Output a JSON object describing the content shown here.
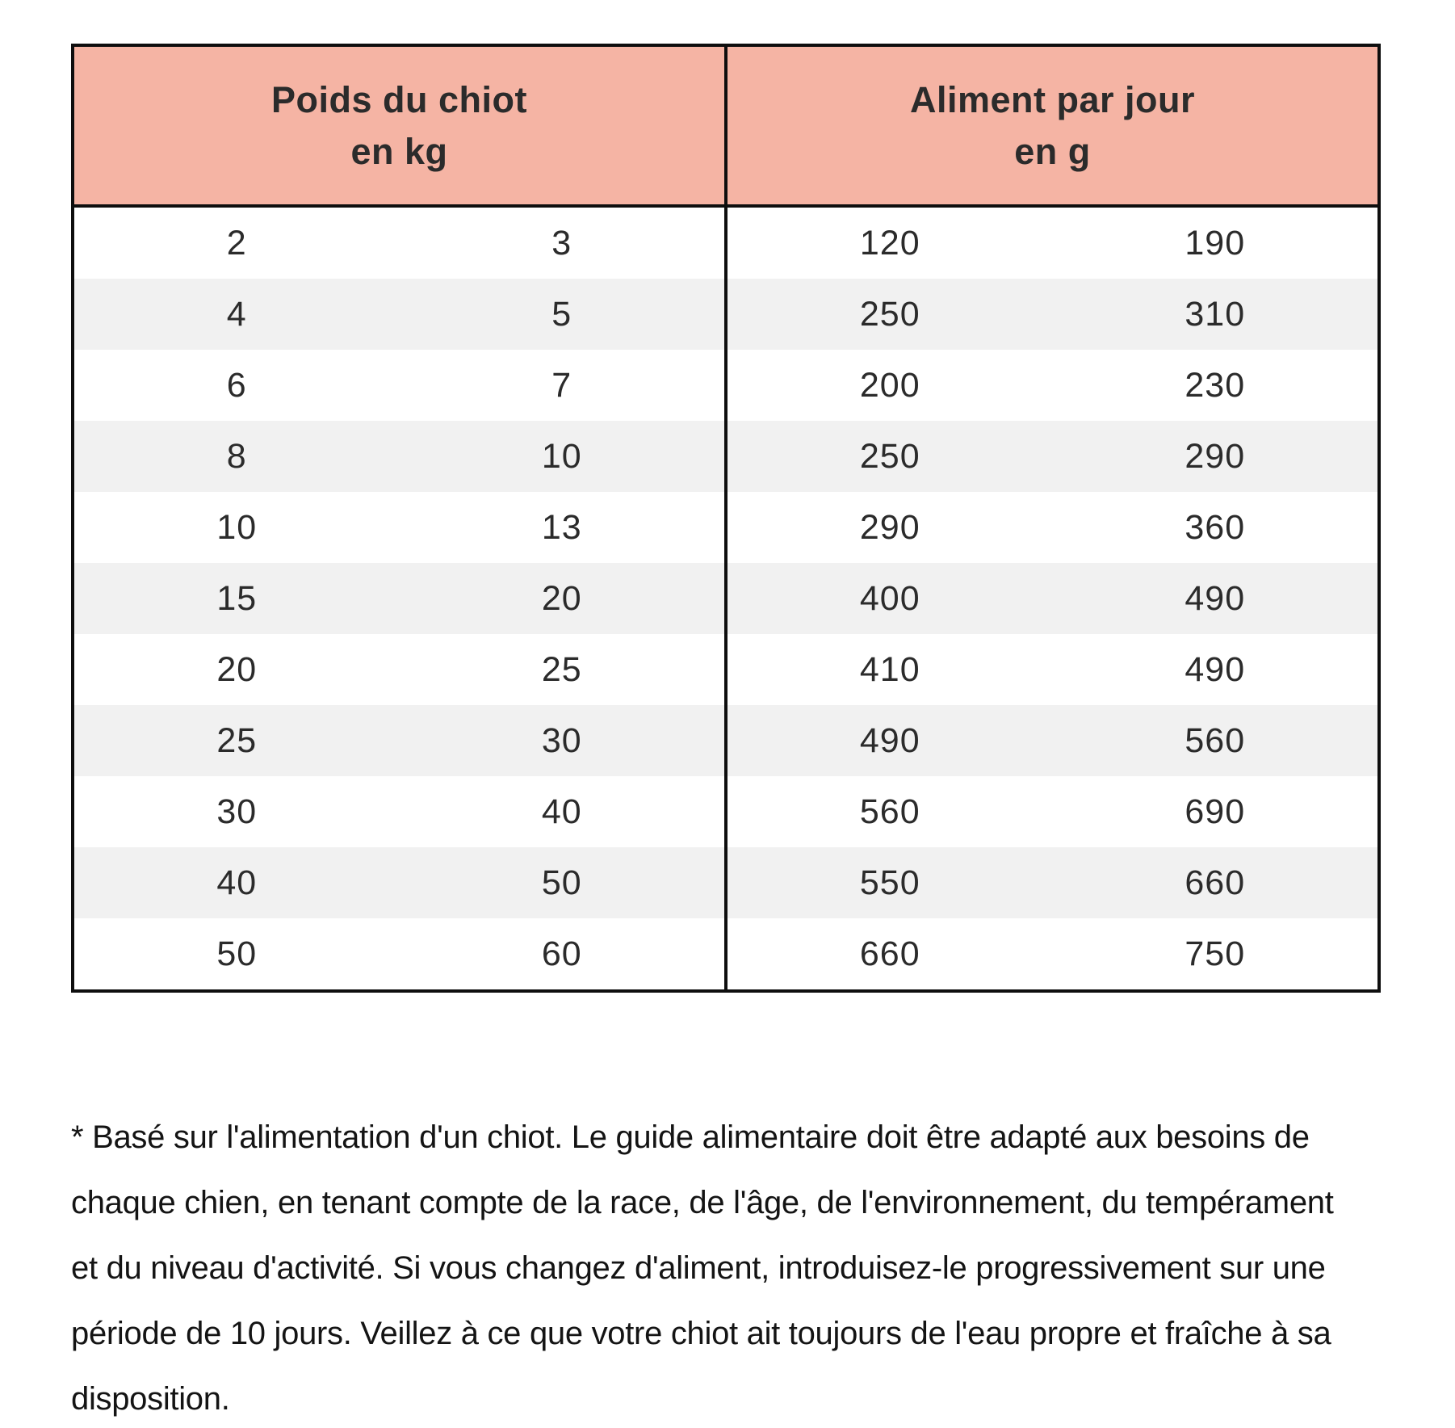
{
  "table": {
    "headers": [
      {
        "title": "Poids du chiot",
        "unit": "en kg"
      },
      {
        "title": "Aliment par jour",
        "unit": "en g"
      }
    ],
    "rows": [
      {
        "weight_min": "2",
        "weight_max": "3",
        "food_min": "120",
        "food_max": "190"
      },
      {
        "weight_min": "4",
        "weight_max": "5",
        "food_min": "250",
        "food_max": "310"
      },
      {
        "weight_min": "6",
        "weight_max": "7",
        "food_min": "200",
        "food_max": "230"
      },
      {
        "weight_min": "8",
        "weight_max": "10",
        "food_min": "250",
        "food_max": "290"
      },
      {
        "weight_min": "10",
        "weight_max": "13",
        "food_min": "290",
        "food_max": "360"
      },
      {
        "weight_min": "15",
        "weight_max": "20",
        "food_min": "400",
        "food_max": "490"
      },
      {
        "weight_min": "20",
        "weight_max": "25",
        "food_min": "410",
        "food_max": "490"
      },
      {
        "weight_min": "25",
        "weight_max": "30",
        "food_min": "490",
        "food_max": "560"
      },
      {
        "weight_min": "30",
        "weight_max": "40",
        "food_min": "560",
        "food_max": "690"
      },
      {
        "weight_min": "40",
        "weight_max": "50",
        "food_min": "550",
        "food_max": "660"
      },
      {
        "weight_min": "50",
        "weight_max": "60",
        "food_min": "660",
        "food_max": "750"
      }
    ]
  },
  "footnote": {
    "lines": [
      "* Basé sur l'alimentation d'un chiot. Le guide alimentaire doit être adapté aux besoins de",
      "chaque chien, en tenant compte de la race, de l'âge, de l'environnement, du tempérament",
      "et du niveau d'activité. Si vous changez d'aliment, introduisez-le progressivement sur une",
      "période de 10 jours. Veillez à ce que votre chiot ait toujours de l'eau propre et fraîche à sa",
      "disposition."
    ]
  },
  "colors": {
    "header_bg": "#f5b4a4",
    "row_alt_bg": "#f1f1f1",
    "border": "#0e0e0e",
    "text": "#2b2b2b"
  }
}
